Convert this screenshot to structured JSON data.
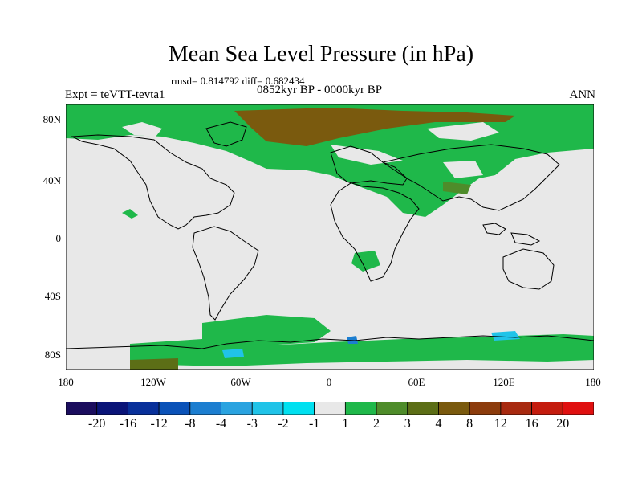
{
  "title": "Mean Sea Level Pressure (in hPa)",
  "stats": "rmsd= 0.814792 diff= 0.682434",
  "expt": "Expt = teVTT-tevta1",
  "period": "0852kyr BP - 0000kyr BP",
  "season": "ANN",
  "lat_labels": [
    "80N",
    "40N",
    "0",
    "40S",
    "80S"
  ],
  "lon_labels": [
    "180",
    "120W",
    "60W",
    "0",
    "60E",
    "120E",
    "180"
  ],
  "colorbar": {
    "labels": [
      "-20",
      "-16",
      "-12",
      "-8",
      "-4",
      "-3",
      "-2",
      "-1",
      "1",
      "2",
      "3",
      "4",
      "8",
      "12",
      "16",
      "20"
    ],
    "colors": [
      "#1b0d5e",
      "#0a1478",
      "#08309a",
      "#0a52b8",
      "#1c7ed0",
      "#2aa3e0",
      "#20c3e8",
      "#00e0f0",
      "#e8e8e8",
      "#1fb84a",
      "#4e8c2a",
      "#5c6e16",
      "#7a5a0e",
      "#8c3c0c",
      "#a82a10",
      "#c41c0e",
      "#e01010"
    ]
  },
  "map_colors": {
    "neutral": "#e8e8e8",
    "green": "#1fb84a",
    "dark_green": "#4e8c2a",
    "brown": "#7a5a0e",
    "olive": "#5c6e16",
    "light_blue": "#20c3e8",
    "blue": "#1c7ed0",
    "coast": "#000000"
  }
}
